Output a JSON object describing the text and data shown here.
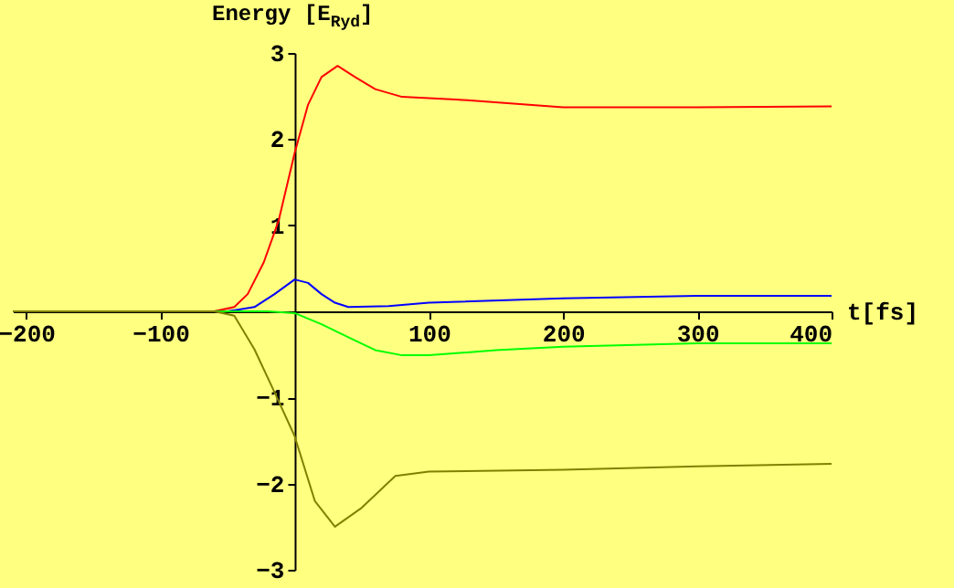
{
  "chart_data": {
    "type": "line",
    "xlabel": "t[fs]",
    "ylabel": "Energy [E$_{Ryd}$]",
    "xlim": [
      -210,
      400
    ],
    "ylim": [
      -3,
      3
    ],
    "xticks": [
      -200,
      -100,
      100,
      200,
      300,
      400
    ],
    "yticks": [
      -3,
      -2,
      -1,
      1,
      2,
      3
    ],
    "grid": false,
    "legend": false,
    "series": [
      {
        "color": "#ff0000",
        "x": [
          -210,
          -60,
          -45,
          -35,
          -23,
          -12,
          0,
          10,
          20,
          32,
          45,
          60,
          80,
          120,
          200,
          300,
          400
        ],
        "values": [
          0,
          0,
          0.05,
          0.2,
          0.57,
          1.05,
          1.84,
          2.4,
          2.72,
          2.85,
          2.72,
          2.58,
          2.49,
          2.46,
          2.37,
          2.37,
          2.38
        ]
      },
      {
        "color": "#0000ff",
        "x": [
          -210,
          -50,
          -30,
          -15,
          0,
          10,
          20,
          30,
          40,
          70,
          100,
          200,
          300,
          400
        ],
        "values": [
          0,
          0,
          0.05,
          0.2,
          0.37,
          0.33,
          0.2,
          0.1,
          0.05,
          0.06,
          0.1,
          0.15,
          0.18,
          0.18
        ]
      },
      {
        "color": "#00ff00",
        "x": [
          -210,
          -20,
          0,
          20,
          40,
          60,
          80,
          100,
          150,
          200,
          300,
          400
        ],
        "values": [
          0,
          0,
          -0.02,
          -0.15,
          -0.3,
          -0.45,
          -0.51,
          -0.51,
          -0.45,
          -0.41,
          -0.37,
          -0.37
        ]
      },
      {
        "color": "#808000",
        "x": [
          -210,
          -60,
          -45,
          -30,
          -15,
          0,
          15,
          30,
          50,
          75,
          100,
          200,
          300,
          400
        ],
        "values": [
          0,
          0,
          -0.05,
          -0.44,
          -0.94,
          -1.45,
          -2.2,
          -2.5,
          -2.28,
          -1.91,
          -1.86,
          -1.84,
          -1.8,
          -1.77
        ]
      }
    ]
  }
}
